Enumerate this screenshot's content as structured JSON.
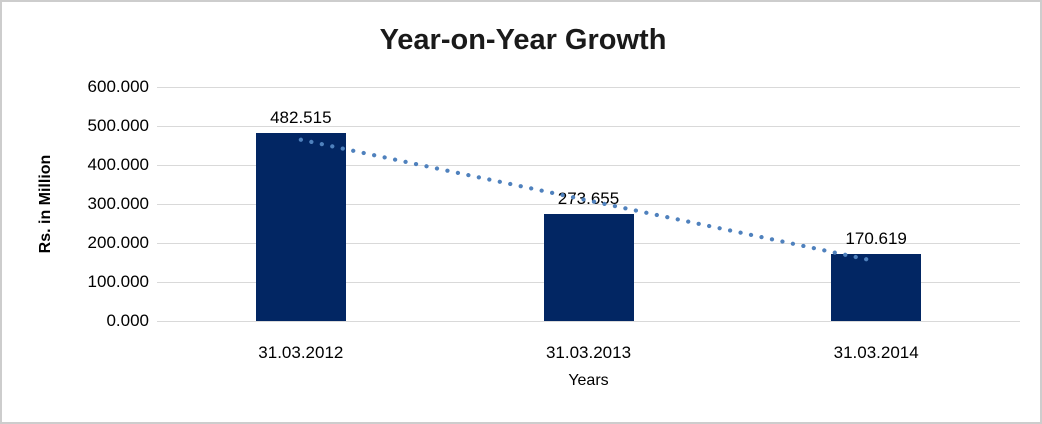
{
  "chart_data": {
    "type": "bar",
    "title": "Year-on-Year Growth",
    "xlabel": "Years",
    "ylabel": "Rs. in Million",
    "categories": [
      "31.03.2012",
      "31.03.2013",
      "31.03.2014"
    ],
    "values": [
      482.515,
      273.655,
      170.619
    ],
    "value_labels": [
      "482.515",
      "273.655",
      "170.619"
    ],
    "ylim": [
      0,
      600
    ],
    "ytick_step": 100,
    "ytick_labels": [
      "0.000",
      "100.000",
      "200.000",
      "300.000",
      "400.000",
      "500.000",
      "600.000"
    ],
    "grid": "horizontal-gridlines-on",
    "legend": "none",
    "trendline": {
      "type": "linear-fit",
      "style": "dotted"
    },
    "colors": {
      "bar": "#022663",
      "trendline": "#4F81BD",
      "gridline": "#D9D9D9",
      "text": "#000000",
      "title_text": "#1A1A1A",
      "frame_border": "#CDCDCD",
      "background": "#FFFFFF"
    }
  }
}
